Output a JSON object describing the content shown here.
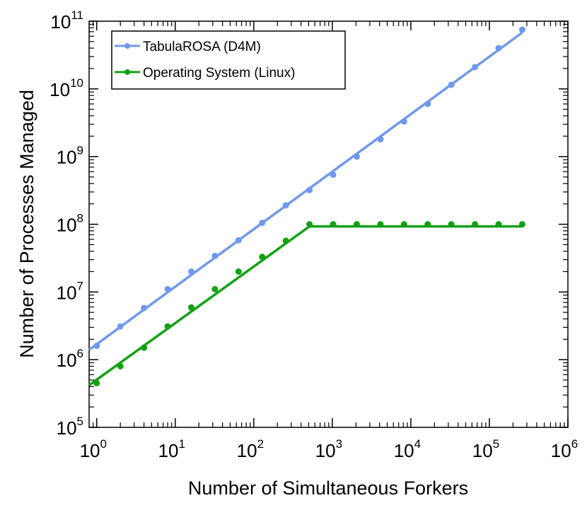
{
  "chart_data": {
    "type": "line",
    "title": "",
    "xlabel": "Number of Simultaneous Forkers",
    "ylabel": "Number of Processes Managed",
    "x_scale": "log",
    "y_scale": "log",
    "xlim": [
      0.8,
      1000000
    ],
    "ylim": [
      100000,
      100000000000
    ],
    "x_ticks": [
      {
        "base": "10",
        "exp": "0",
        "value": 1
      },
      {
        "base": "10",
        "exp": "1",
        "value": 10
      },
      {
        "base": "10",
        "exp": "2",
        "value": 100
      },
      {
        "base": "10",
        "exp": "3",
        "value": 1000
      },
      {
        "base": "10",
        "exp": "4",
        "value": 10000
      },
      {
        "base": "10",
        "exp": "5",
        "value": 100000
      },
      {
        "base": "10",
        "exp": "6",
        "value": 1000000
      }
    ],
    "y_ticks": [
      {
        "base": "10",
        "exp": "5",
        "value": 100000
      },
      {
        "base": "10",
        "exp": "6",
        "value": 1000000
      },
      {
        "base": "10",
        "exp": "7",
        "value": 10000000
      },
      {
        "base": "10",
        "exp": "8",
        "value": 100000000
      },
      {
        "base": "10",
        "exp": "9",
        "value": 1000000000
      },
      {
        "base": "10",
        "exp": "10",
        "value": 10000000000
      },
      {
        "base": "10",
        "exp": "11",
        "value": 100000000000
      }
    ],
    "grid": false,
    "legend_position": "top-left",
    "x": [
      1,
      2,
      4,
      8,
      16,
      32,
      64,
      128,
      256,
      512,
      1024,
      2048,
      4096,
      8192,
      16384,
      32768,
      65536,
      131072,
      262144
    ],
    "series": [
      {
        "name": "TabulaROSA (D4M)",
        "color": "#6f99ef",
        "values": [
          1600000,
          3100000,
          5800000,
          11000000,
          20000000,
          34000000,
          58000000,
          105000000,
          190000000,
          320000000,
          540000000,
          1000000000,
          1800000000,
          3300000000,
          6000000000,
          11500000000,
          21000000000,
          40000000000,
          75000000000
        ],
        "fit_line": [
          [
            0.8,
            1400000
          ],
          [
            262144,
            68000000000
          ]
        ]
      },
      {
        "name": "Operating System (Linux)",
        "color": "#12a112",
        "values": [
          450000,
          800000,
          1500000,
          3100000,
          5900000,
          11000000,
          20000000,
          33000000,
          57000000,
          100000000,
          100000000,
          100000000,
          100000000,
          100000000,
          100000000,
          100000000,
          100000000,
          100000000,
          100000000
        ],
        "fit_line": [
          [
            0.8,
            420000
          ],
          [
            512,
            93000000
          ],
          [
            262144,
            93000000
          ]
        ]
      }
    ]
  }
}
